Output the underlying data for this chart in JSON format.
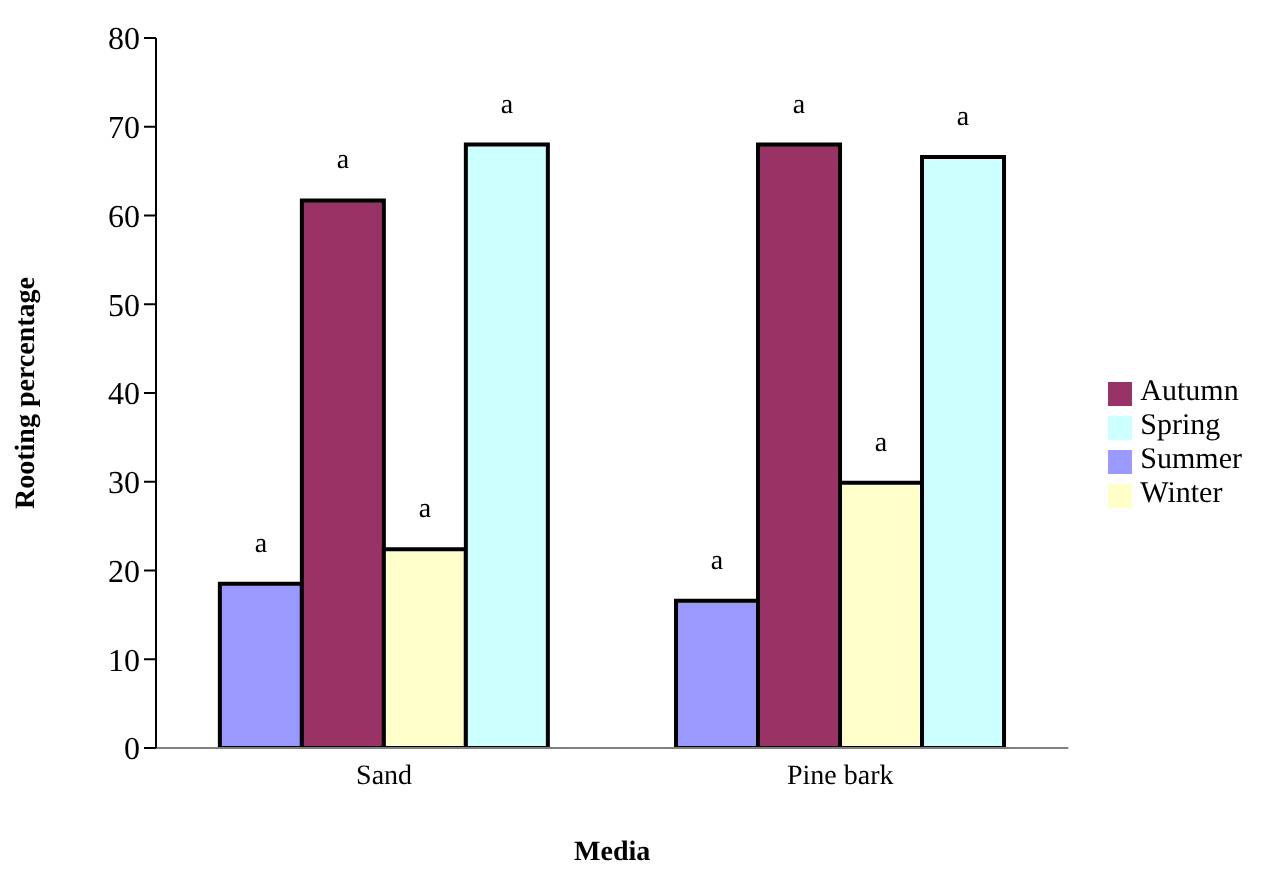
{
  "chart_data": {
    "type": "bar",
    "xlabel": "Media",
    "ylabel": "Rooting percentage",
    "categories": [
      "Sand",
      "Pine bark"
    ],
    "series": [
      {
        "name": "Summer",
        "color": "#9999ff",
        "values": [
          18.5,
          16.6
        ],
        "value_labels": [
          "a",
          "a"
        ]
      },
      {
        "name": "Autumn",
        "color": "#993366",
        "values": [
          61.7,
          68.0
        ],
        "value_labels": [
          "a",
          "a"
        ]
      },
      {
        "name": "Winter",
        "color": "#ffffcc",
        "values": [
          22.4,
          29.9
        ],
        "value_labels": [
          "a",
          "a"
        ]
      },
      {
        "name": "Spring",
        "color": "#ccffff",
        "values": [
          68.0,
          66.6
        ],
        "value_labels": [
          "a",
          "a"
        ]
      }
    ],
    "ylim": [
      0,
      80
    ],
    "yticks": [
      0,
      10,
      20,
      30,
      40,
      50,
      60,
      70,
      80
    ],
    "grid": false,
    "legend": "right"
  }
}
